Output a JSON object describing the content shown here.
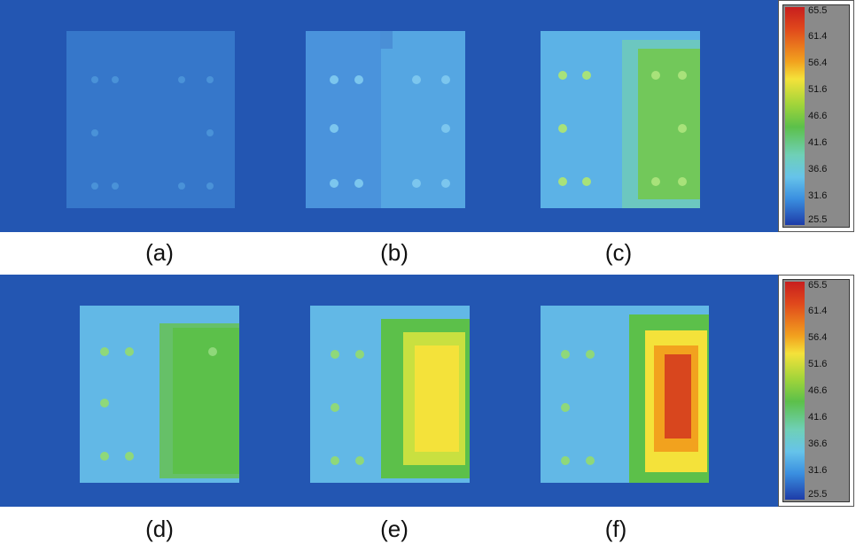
{
  "captions": {
    "a": "(a)",
    "b": "(b)",
    "c": "(c)",
    "d": "(d)",
    "e": "(e)",
    "f": "(f)"
  },
  "scale": {
    "labels": [
      "65.5",
      "61.4",
      "56.4",
      "51.6",
      "46.6",
      "41.6",
      "36.6",
      "31.6",
      "25.5"
    ]
  },
  "colors": {
    "background": "#2356b2",
    "cool": "#4ea6e0",
    "green": "#5cc04a",
    "yellow": "#f4e23a",
    "red": "#d8461e"
  }
}
